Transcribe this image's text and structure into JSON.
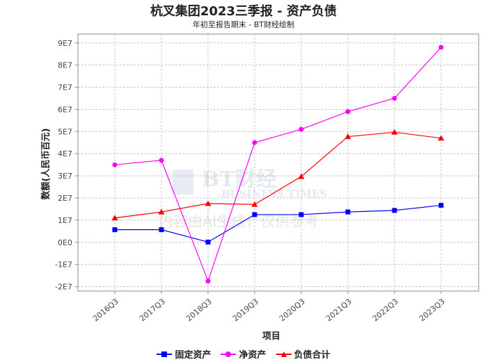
{
  "title": "杭叉集团2023三季报 - 资产负债",
  "subtitle": "年初至报告期末 - BT财经绘制",
  "watermark": {
    "brand": "BT财经",
    "brand_en": "BUSINESS TIMES",
    "notice": "内容由AI生成，仅供参考"
  },
  "chart_data": {
    "type": "line",
    "title": "杭叉集团2023三季报 - 资产负债",
    "subtitle": "年初至报告期末 - BT财经绘制",
    "xlabel": "项目",
    "ylabel": "数额(人民币百元)",
    "categories": [
      "2016Q3",
      "2017Q3",
      "2018Q3",
      "2019Q3",
      "2020Q3",
      "2021Q3",
      "2022Q3",
      "2023Q3"
    ],
    "ylim": [
      -22000000,
      94000000
    ],
    "yticks": [
      -20000000,
      -10000000,
      0,
      10000000,
      20000000,
      30000000,
      40000000,
      50000000,
      60000000,
      70000000,
      80000000,
      90000000
    ],
    "ytick_labels": [
      "-2E7",
      "-1E7",
      "0E0",
      "1E7",
      "2E7",
      "3E7",
      "4E7",
      "5E7",
      "6E7",
      "7E7",
      "8E7",
      "9E7"
    ],
    "grid": true,
    "legend": "bottom",
    "series": [
      {
        "name": "固定资产",
        "color": "#0000ff",
        "marker": "square",
        "values": [
          5700000,
          5700000,
          100000,
          12500000,
          12500000,
          13700000,
          14400000,
          16700000
        ]
      },
      {
        "name": "净资产",
        "color": "#ff00ff",
        "marker": "circle",
        "values": [
          35000000,
          37000000,
          -17500000,
          45000000,
          51000000,
          59000000,
          65000000,
          88000000
        ]
      },
      {
        "name": "负债合计",
        "color": "#ff0000",
        "marker": "triangle",
        "values": [
          11000000,
          13700000,
          17500000,
          17100000,
          29700000,
          47700000,
          49700000,
          47000000
        ]
      }
    ]
  }
}
